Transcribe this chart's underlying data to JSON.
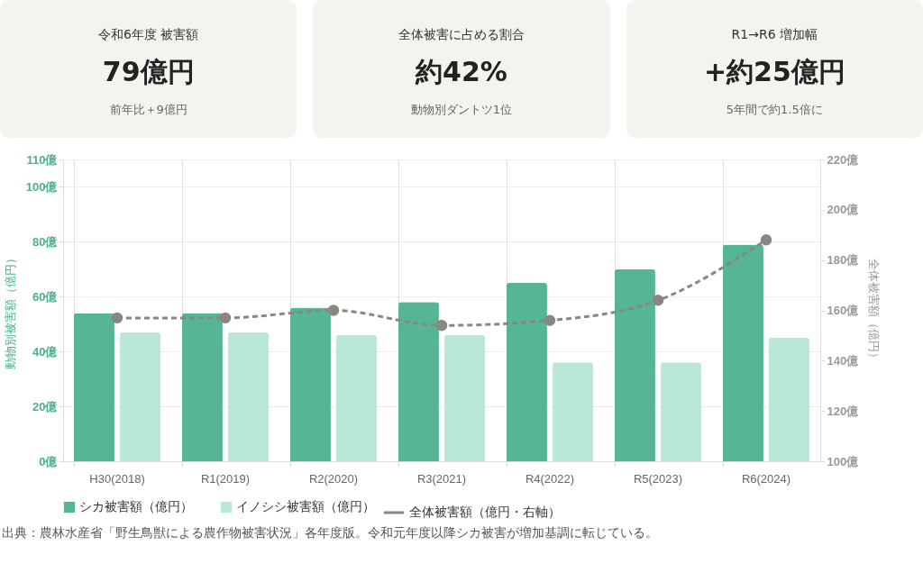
{
  "chart_data": [
    {
      "type": "other",
      "title": "令和6年度 被害額",
      "annotations": [
        "79億円",
        "前年比＋9億円"
      ]
    },
    {
      "type": "other",
      "title": "全体被害に占める割合",
      "annotations": [
        "約42%",
        "動物別ダントツ1位"
      ]
    },
    {
      "type": "other",
      "title": "R1→R6 増加幅",
      "annotations": [
        "+約25億円",
        "5年間で約1.5倍に"
      ]
    },
    {
      "type": "bar",
      "categories": [
        "H30(2018)",
        "R1(2019)",
        "R2(2020)",
        "R3(2021)",
        "R4(2022)",
        "R5(2023)",
        "R6(2024)"
      ],
      "ylabel": "動物別被害額（億円）",
      "y2label": "全体被害額（億円）",
      "ylim": [
        0,
        110
      ],
      "yticks": [
        {
          "value": 0,
          "label": "0億"
        },
        {
          "value": 20,
          "label": "20億"
        },
        {
          "value": 40,
          "label": "40億"
        },
        {
          "value": 60,
          "label": "60億"
        },
        {
          "value": 80,
          "label": "80億"
        },
        {
          "value": 100,
          "label": "100億"
        },
        {
          "value": 110,
          "label": "110億"
        }
      ],
      "y2lim": [
        100,
        220
      ],
      "y2ticks": [
        {
          "value": 100,
          "label": "100億"
        },
        {
          "value": 120,
          "label": "120億"
        },
        {
          "value": 140,
          "label": "140億"
        },
        {
          "value": 160,
          "label": "160億"
        },
        {
          "value": 180,
          "label": "180億"
        },
        {
          "value": 200,
          "label": "200億"
        },
        {
          "value": 220,
          "label": "220億"
        }
      ],
      "series": [
        {
          "name": "シカ被害額（億円）",
          "color": "#55b596",
          "values": [
            54,
            54,
            56,
            58,
            65,
            70,
            79
          ]
        },
        {
          "name": "イノシシ被害額（億円）",
          "color": "#b9e8d8",
          "values": [
            47,
            47,
            46,
            46,
            36,
            36,
            45
          ]
        },
        {
          "name": "全体被害額（億円・右軸）",
          "type": "line",
          "axis": "y2",
          "color": "#8a8780",
          "marker": "circle",
          "line_style": "dashed",
          "values": [
            157,
            157,
            160,
            154,
            156,
            164,
            188
          ]
        }
      ],
      "grid": true,
      "legend": "bottom left",
      "annotations": [
        "出典：農林水産省「野生鳥獣による農作物被害状況」各年度版。令和元年度以降シカ被害が増加基調に転じている。"
      ]
    }
  ]
}
